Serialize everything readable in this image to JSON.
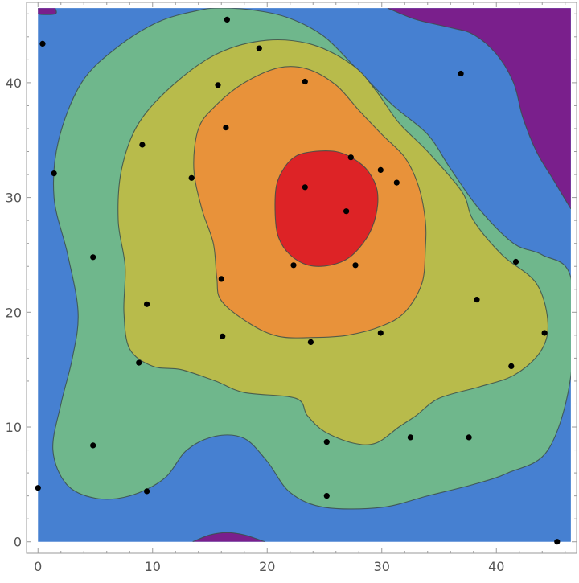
{
  "chart_data": {
    "type": "contour",
    "title": "",
    "xlabel": "",
    "ylabel": "",
    "xlim": [
      -1,
      47
    ],
    "ylim": [
      -1,
      47
    ],
    "x_ticks": [
      0,
      10,
      20,
      30,
      40
    ],
    "y_ticks": [
      0,
      10,
      20,
      30,
      40
    ],
    "x_tick_labels": [
      "0",
      "10",
      "20",
      "30",
      "40"
    ],
    "y_tick_labels": [
      "0",
      "10",
      "20",
      "30",
      "40"
    ],
    "data_extent": {
      "x": [
        0,
        46.5
      ],
      "y": [
        0,
        46.5
      ]
    },
    "grid": false,
    "legend": "none",
    "colors": {
      "background_band": "#4680d1",
      "frame": "#9a9a9a",
      "point": "#000000",
      "contour_line": "#3c4d4a"
    },
    "levels": [
      {
        "name": "level-lowest",
        "color": "#7a1f8c",
        "regions": [
          [
            [
              30.5,
              46.5
            ],
            [
              33,
              45.5
            ],
            [
              36,
              44.8
            ],
            [
              38,
              44.2
            ],
            [
              40,
              42.5
            ],
            [
              41.5,
              40
            ],
            [
              42.3,
              37
            ],
            [
              43.5,
              34
            ],
            [
              45,
              31.5
            ],
            [
              46.5,
              29
            ]
          ],
          [
            [
              0,
              46.5
            ],
            [
              0,
              46
            ],
            [
              1.5,
              46
            ],
            [
              1.5,
              46.5
            ]
          ],
          [
            [
              13.5,
              0
            ],
            [
              15,
              0.6
            ],
            [
              16.5,
              0.8
            ],
            [
              18,
              0.6
            ],
            [
              19.8,
              0
            ]
          ]
        ]
      },
      {
        "name": "level-2",
        "color": "#6fb78c",
        "region": [
          [
            16,
            46.5
          ],
          [
            19,
            46.3
          ],
          [
            22,
            45.6
          ],
          [
            25,
            44
          ],
          [
            28,
            41
          ],
          [
            31,
            38
          ],
          [
            34,
            35.5
          ],
          [
            36,
            32.5
          ],
          [
            38.5,
            29
          ],
          [
            41.5,
            26
          ],
          [
            44,
            25
          ],
          [
            46.5,
            23
          ],
          [
            46.5,
            14.5
          ],
          [
            44.5,
            8
          ],
          [
            41,
            6
          ],
          [
            38,
            5
          ],
          [
            34,
            4
          ],
          [
            30,
            3
          ],
          [
            25,
            3
          ],
          [
            22,
            4.3
          ],
          [
            20,
            7
          ],
          [
            18,
            9
          ],
          [
            15.5,
            9.2
          ],
          [
            13,
            8
          ],
          [
            11,
            5.5
          ],
          [
            8,
            4
          ],
          [
            5,
            3.8
          ],
          [
            2.5,
            5
          ],
          [
            1.3,
            8
          ],
          [
            2,
            12
          ],
          [
            3,
            16
          ],
          [
            3.5,
            20
          ],
          [
            2.6,
            25
          ],
          [
            1.4,
            30
          ],
          [
            1.8,
            35
          ],
          [
            3.8,
            40
          ],
          [
            6.8,
            43
          ],
          [
            10.5,
            45.3
          ],
          [
            14,
            46.3
          ]
        ]
      },
      {
        "name": "level-3",
        "color": "#b8bb4b",
        "region": [
          [
            12,
            40
          ],
          [
            15.8,
            42.6
          ],
          [
            20,
            43.7
          ],
          [
            24,
            43.3
          ],
          [
            27.5,
            41.5
          ],
          [
            29.5,
            39.3
          ],
          [
            31.5,
            36.5
          ],
          [
            34,
            34
          ],
          [
            37,
            30.5
          ],
          [
            38,
            28
          ],
          [
            40.5,
            25
          ],
          [
            43.5,
            22.5
          ],
          [
            44.5,
            19
          ],
          [
            43.8,
            16.5
          ],
          [
            41.5,
            14.5
          ],
          [
            38.5,
            13.5
          ],
          [
            35,
            12.5
          ],
          [
            33,
            11
          ],
          [
            31.5,
            10
          ],
          [
            29.5,
            8.6
          ],
          [
            27.5,
            8.6
          ],
          [
            25,
            9.6
          ],
          [
            23.5,
            11
          ],
          [
            22.5,
            12.5
          ],
          [
            18,
            13
          ],
          [
            15.5,
            14
          ],
          [
            12.5,
            15
          ],
          [
            10,
            15.3
          ],
          [
            8,
            16.8
          ],
          [
            7.5,
            20
          ],
          [
            7.6,
            24
          ],
          [
            7,
            28
          ],
          [
            7.3,
            32.5
          ],
          [
            8.8,
            36.5
          ]
        ]
      },
      {
        "name": "level-4",
        "color": "#e8923a",
        "region": [
          [
            15.5,
            38
          ],
          [
            18,
            40
          ],
          [
            21,
            41.3
          ],
          [
            23.5,
            41.2
          ],
          [
            26,
            39.8
          ],
          [
            28,
            37.6
          ],
          [
            30,
            35.5
          ],
          [
            32,
            33.5
          ],
          [
            33.2,
            31
          ],
          [
            33.8,
            28
          ],
          [
            33.8,
            25.5
          ],
          [
            33.5,
            22.5
          ],
          [
            32,
            20
          ],
          [
            30,
            18.8
          ],
          [
            27,
            18
          ],
          [
            24,
            17.8
          ],
          [
            21,
            17.9
          ],
          [
            18.5,
            19
          ],
          [
            16,
            21
          ],
          [
            15.6,
            23
          ],
          [
            15.3,
            26
          ],
          [
            14.3,
            29
          ],
          [
            13.6,
            32.5
          ],
          [
            14,
            36
          ]
        ]
      },
      {
        "name": "level-highest",
        "color": "#dd2326",
        "region": [
          [
            20.8,
            31
          ],
          [
            21.5,
            32.6
          ],
          [
            22.5,
            33.6
          ],
          [
            24,
            34
          ],
          [
            26,
            34
          ],
          [
            27.5,
            33.4
          ],
          [
            28.8,
            32.3
          ],
          [
            29.6,
            30.6
          ],
          [
            29.5,
            28.5
          ],
          [
            28.7,
            26.5
          ],
          [
            27.2,
            24.8
          ],
          [
            25.5,
            24.1
          ],
          [
            23.6,
            24.1
          ],
          [
            22,
            25
          ],
          [
            21,
            26.5
          ],
          [
            20.7,
            28.5
          ]
        ]
      }
    ],
    "points": [
      [
        16.5,
        45.5
      ],
      [
        0.4,
        43.4
      ],
      [
        19.3,
        43
      ],
      [
        15.7,
        39.8
      ],
      [
        23.3,
        40.1
      ],
      [
        36.9,
        40.8
      ],
      [
        16.4,
        36.1
      ],
      [
        9.1,
        34.6
      ],
      [
        27.3,
        33.5
      ],
      [
        29.9,
        32.4
      ],
      [
        31.3,
        31.3
      ],
      [
        1.4,
        32.1
      ],
      [
        13.4,
        31.7
      ],
      [
        23.3,
        30.9
      ],
      [
        26.9,
        28.8
      ],
      [
        4.8,
        24.8
      ],
      [
        22.3,
        24.1
      ],
      [
        27.7,
        24.1
      ],
      [
        41.7,
        24.4
      ],
      [
        16,
        22.9
      ],
      [
        38.3,
        21.1
      ],
      [
        9.5,
        20.7
      ],
      [
        16.1,
        17.9
      ],
      [
        23.8,
        17.4
      ],
      [
        29.9,
        18.2
      ],
      [
        44.2,
        18.2
      ],
      [
        8.8,
        15.6
      ],
      [
        41.3,
        15.3
      ],
      [
        25.2,
        8.7
      ],
      [
        32.5,
        9.1
      ],
      [
        37.6,
        9.1
      ],
      [
        4.8,
        8.4
      ],
      [
        9.5,
        4.4
      ],
      [
        0,
        4.7
      ],
      [
        25.2,
        4
      ],
      [
        45.3,
        0
      ]
    ]
  }
}
